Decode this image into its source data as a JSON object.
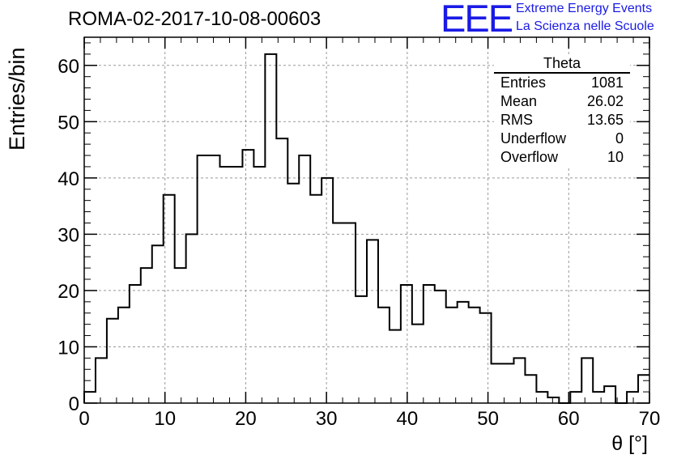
{
  "header": {
    "title": "ROMA-02-2017-10-08-00603",
    "logo_text": "EEE",
    "logo_line1": "Extreme Energy Events",
    "logo_line2": "La Scienza nelle Scuole"
  },
  "stats_box": {
    "title": "Theta",
    "rows": [
      {
        "label": "Entries",
        "value": "1081"
      },
      {
        "label": "Mean",
        "value": "26.02"
      },
      {
        "label": "RMS",
        "value": "13.65"
      },
      {
        "label": "Underflow",
        "value": "0"
      },
      {
        "label": "Overflow",
        "value": "10"
      }
    ]
  },
  "colors": {
    "line": "#000000",
    "grid": "#999999",
    "logo": "#1a1ae6"
  },
  "chart_data": {
    "type": "histogram",
    "title": "ROMA-02-2017-10-08-00603",
    "xlabel": "θ [°]",
    "ylabel": "Entries/bin",
    "xlim": [
      0,
      70
    ],
    "ylim": [
      0,
      65
    ],
    "bin_width": 1.4,
    "x_ticks": [
      0,
      10,
      20,
      30,
      40,
      50,
      60,
      70
    ],
    "y_ticks": [
      0,
      10,
      20,
      30,
      40,
      50,
      60
    ],
    "grid": true,
    "legend": "stats box top-right",
    "counts": [
      2,
      8,
      15,
      17,
      21,
      24,
      28,
      37,
      24,
      30,
      44,
      44,
      42,
      42,
      45,
      42,
      62,
      47,
      39,
      44,
      37,
      40,
      32,
      32,
      19,
      29,
      17,
      13,
      21,
      14,
      21,
      20,
      17,
      18,
      17,
      16,
      7,
      7,
      8,
      5,
      2,
      1,
      0,
      2,
      8,
      2,
      3,
      0,
      2,
      5
    ]
  }
}
